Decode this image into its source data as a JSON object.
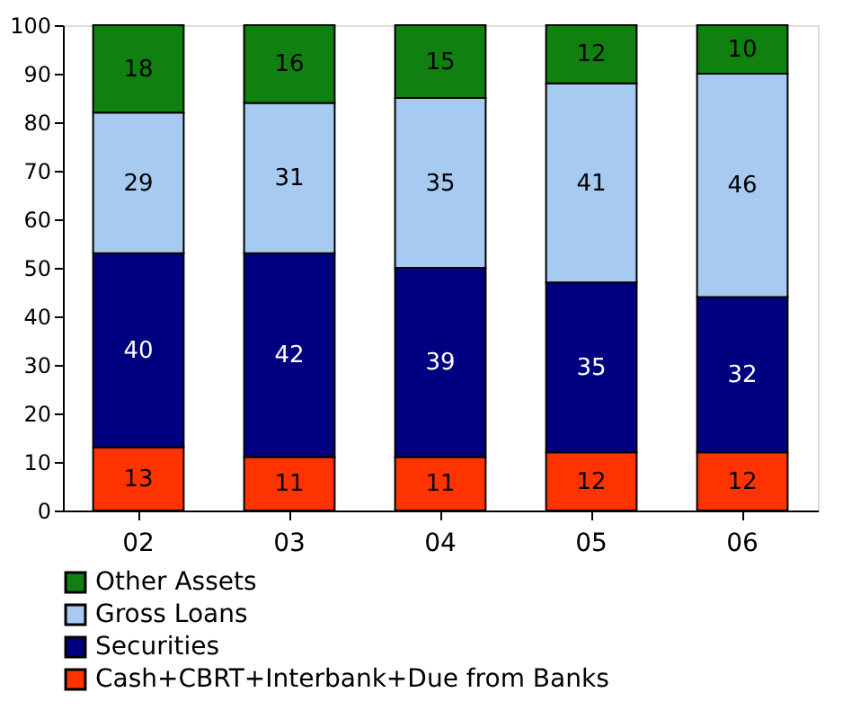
{
  "chart_data": {
    "type": "bar",
    "stacked": true,
    "categories": [
      "02",
      "03",
      "04",
      "05",
      "06"
    ],
    "series": [
      {
        "name": "Cash+CBRT+Interbank+Due from Banks",
        "color": "#ff3300",
        "values": [
          13,
          11,
          11,
          12,
          12
        ]
      },
      {
        "name": "Securities",
        "color": "#000080",
        "values": [
          40,
          42,
          39,
          35,
          32
        ]
      },
      {
        "name": "Gross Loans",
        "color": "#a6caf0",
        "values": [
          29,
          31,
          35,
          41,
          46
        ]
      },
      {
        "name": "Other Assets",
        "color": "#108010",
        "values": [
          18,
          16,
          15,
          12,
          10
        ]
      }
    ],
    "ylim": [
      0,
      100
    ],
    "yticks": [
      0,
      10,
      20,
      30,
      40,
      50,
      60,
      70,
      80,
      90,
      100
    ],
    "data_labels": true,
    "legend": "bottom",
    "grid": false
  }
}
